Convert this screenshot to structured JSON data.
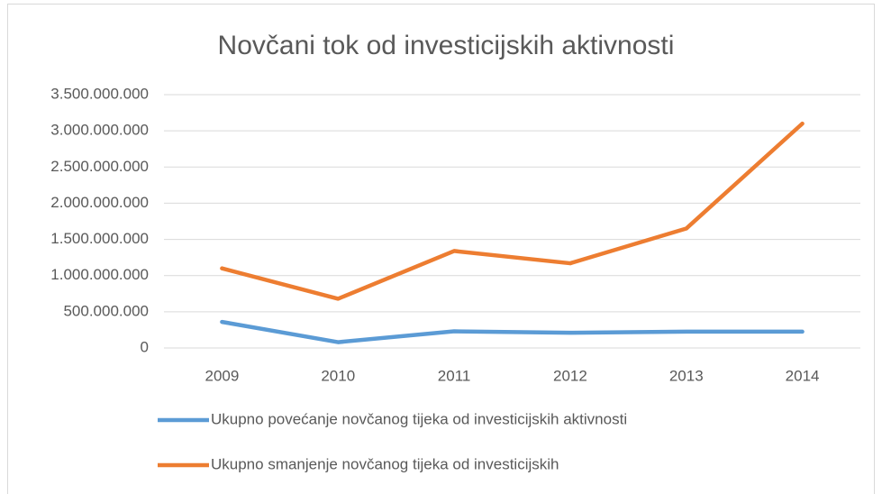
{
  "chart_data": {
    "type": "line",
    "title": "Novčani tok od investicijskih aktivnosti",
    "categories": [
      "2009",
      "2010",
      "2011",
      "2012",
      "2013",
      "2014"
    ],
    "series": [
      {
        "name": "Ukupno povećanje novčanog tijeka od investicijskih aktivnosti",
        "color": "#5b9bd5",
        "values": [
          360000000,
          80000000,
          230000000,
          210000000,
          225000000,
          225000000
        ]
      },
      {
        "name": "Ukupno smanjenje novčanog tijeka od investicijskih",
        "color": "#ed7d31",
        "values": [
          1100000000,
          680000000,
          1340000000,
          1170000000,
          1650000000,
          3100000000
        ]
      }
    ],
    "ylim": [
      0,
      3500000000
    ],
    "yticks": [
      0,
      {
        "value": 500000000,
        "label": "500.000.000"
      },
      {
        "value": 1000000000,
        "label": "1.000.000.000"
      },
      {
        "value": 1500000000,
        "label": "1.500.000.000"
      },
      {
        "value": 2000000000,
        "label": "2.000.000.000"
      },
      {
        "value": 2500000000,
        "label": "2.500.000.000"
      },
      {
        "value": 3000000000,
        "label": "3.000.000.000"
      },
      {
        "value": 3500000000,
        "label": "3.500.000.000"
      }
    ],
    "grid": true,
    "legend": "bottom"
  }
}
